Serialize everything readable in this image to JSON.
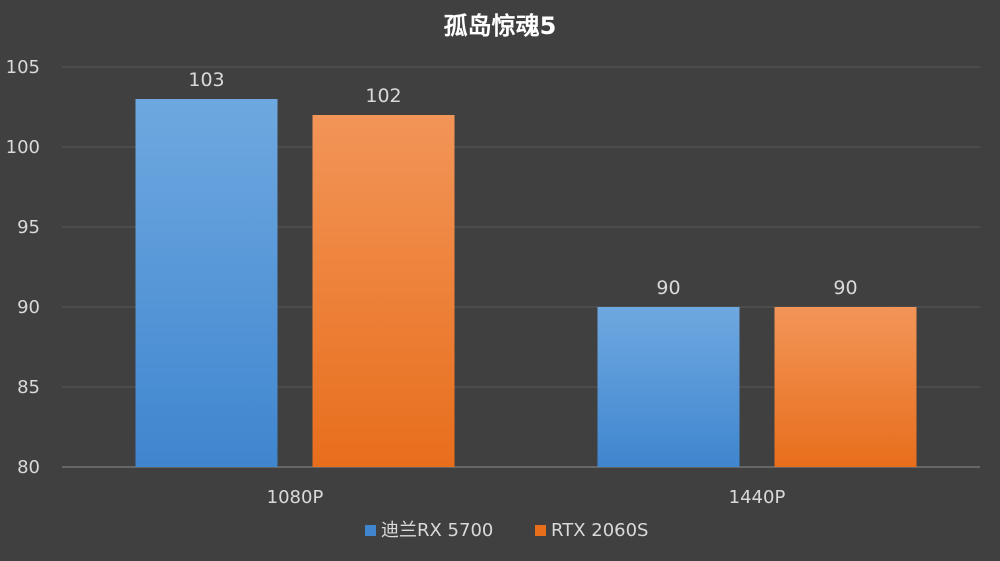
{
  "chart_data": {
    "type": "bar",
    "title": "孤岛惊魂5",
    "categories": [
      "1080P",
      "1440P"
    ],
    "series": [
      {
        "name": "迪兰RX 5700",
        "values": [
          103,
          90
        ],
        "color": "#4a90d9"
      },
      {
        "name": "RTX 2060S",
        "values": [
          102,
          90
        ],
        "color": "#f0782a"
      }
    ],
    "ylim": [
      80,
      105
    ],
    "yticks": [
      80,
      85,
      90,
      95,
      100,
      105
    ],
    "grid": true,
    "legend": "bottom",
    "data_labels": true
  },
  "colors": {
    "background": "#404040",
    "blue_top": "#6fa8e0",
    "blue_bottom": "#3f86cf",
    "orange_top": "#f29558",
    "orange_bottom": "#e86e1c"
  }
}
